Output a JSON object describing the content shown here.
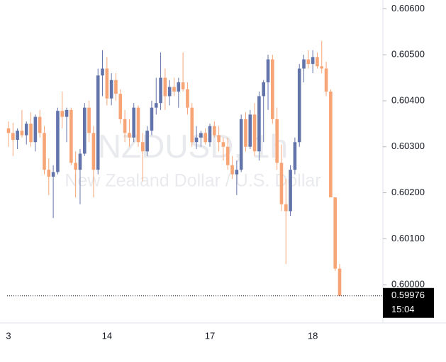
{
  "chart_data": {
    "type": "candlestick",
    "watermark": "NZDUSD, 1h",
    "watermark_subtitle": "New Zealand Dollar / U.S. Dollar",
    "up_color": "#6274aa",
    "down_color": "#f7a576",
    "categories": [
      "3",
      null,
      null,
      null,
      null,
      null,
      null,
      null,
      null,
      null,
      null,
      null,
      null,
      null,
      null,
      null,
      null,
      null,
      null,
      null,
      null,
      null,
      "14",
      null,
      null,
      null,
      null,
      null,
      null,
      null,
      null,
      null,
      null,
      null,
      null,
      null,
      null,
      null,
      null,
      null,
      null,
      null,
      null,
      null,
      null,
      "17",
      null,
      null,
      null,
      null,
      null,
      null,
      null,
      null,
      null,
      null,
      null,
      null,
      null,
      null,
      null,
      null,
      null,
      null,
      null,
      null,
      null,
      null,
      "18",
      null,
      null,
      null,
      null,
      null,
      null
    ],
    "open": [
      0.6034,
      0.6033,
      0.60315,
      0.60335,
      0.60325,
      0.6035,
      0.6031,
      0.60365,
      0.6033,
      0.6025,
      0.60235,
      0.60245,
      0.60378,
      0.60365,
      0.6038,
      0.60265,
      0.6025,
      0.60285,
      0.60385,
      0.6033,
      0.6025,
      0.60455,
      0.6047,
      0.60405,
      0.60445,
      0.60415,
      0.6036,
      0.6033,
      0.6032,
      0.60385,
      0.6031,
      0.6029,
      0.60335,
      0.60385,
      0.60395,
      0.6045,
      0.6041,
      0.6043,
      0.6042,
      0.6044,
      0.60425,
      0.60385,
      0.6031,
      0.6032,
      0.6033,
      0.6031,
      0.60345,
      0.60325,
      0.6031,
      0.603,
      0.6026,
      0.6024,
      0.6025,
      0.6036,
      0.603,
      0.6037,
      0.6029,
      0.6041,
      0.6044,
      0.6049,
      0.6036,
      0.60265,
      0.60175,
      0.6016,
      0.6025,
      0.6031,
      0.6047,
      0.6049,
      0.6048,
      0.60495,
      0.60475,
      0.6047,
      0.6042,
      0.6019,
      0.60035
    ],
    "high": [
      0.60355,
      0.60352,
      0.6034,
      0.6038,
      0.60355,
      0.60375,
      0.6037,
      0.6038,
      0.60345,
      0.60275,
      0.6026,
      0.60385,
      0.6042,
      0.60385,
      0.60385,
      0.6029,
      0.60295,
      0.60395,
      0.604,
      0.60345,
      0.6047,
      0.6051,
      0.60495,
      0.6046,
      0.6046,
      0.60425,
      0.6038,
      0.6036,
      0.60395,
      0.6039,
      0.6033,
      0.60345,
      0.604,
      0.6045,
      0.60505,
      0.6047,
      0.60445,
      0.6045,
      0.6045,
      0.60505,
      0.6044,
      0.60395,
      0.60345,
      0.60335,
      0.6034,
      0.6035,
      0.60355,
      0.60345,
      0.6032,
      0.6032,
      0.6028,
      0.6027,
      0.6037,
      0.60375,
      0.6038,
      0.60395,
      0.6042,
      0.60445,
      0.605,
      0.605,
      0.60385,
      0.60305,
      0.6023,
      0.6026,
      0.6032,
      0.6048,
      0.605,
      0.6051,
      0.6051,
      0.60505,
      0.6053,
      0.60485,
      0.60425,
      0.6019,
      0.60045
    ],
    "low": [
      0.603,
      0.6028,
      0.60295,
      0.6032,
      0.60305,
      0.603,
      0.6029,
      0.6032,
      0.6024,
      0.60195,
      0.60145,
      0.6024,
      0.6034,
      0.6031,
      0.6026,
      0.6019,
      0.60175,
      0.6028,
      0.6031,
      0.6019,
      0.6024,
      0.6041,
      0.6039,
      0.6039,
      0.604,
      0.6035,
      0.6031,
      0.603,
      0.6031,
      0.603,
      0.60225,
      0.6028,
      0.60325,
      0.6037,
      0.6038,
      0.6038,
      0.6039,
      0.6041,
      0.60385,
      0.6042,
      0.6037,
      0.603,
      0.60295,
      0.603,
      0.60305,
      0.603,
      0.6032,
      0.6029,
      0.6027,
      0.6025,
      0.6023,
      0.60195,
      0.60245,
      0.6029,
      0.60295,
      0.6028,
      0.6027,
      0.6031,
      0.6038,
      0.6035,
      0.6025,
      0.6016,
      0.60045,
      0.6015,
      0.6024,
      0.603,
      0.6044,
      0.6047,
      0.6046,
      0.6047,
      0.6046,
      0.6041,
      0.6019,
      0.6003,
      0.59976
    ],
    "close": [
      0.6033,
      0.60315,
      0.60335,
      0.60325,
      0.6035,
      0.6031,
      0.60365,
      0.6033,
      0.6025,
      0.60235,
      0.60245,
      0.60378,
      0.60365,
      0.6038,
      0.60265,
      0.6025,
      0.60285,
      0.60385,
      0.6033,
      0.6025,
      0.60455,
      0.6047,
      0.60405,
      0.60445,
      0.60415,
      0.6036,
      0.6033,
      0.6032,
      0.60385,
      0.6031,
      0.6029,
      0.60335,
      0.60385,
      0.60395,
      0.6045,
      0.6041,
      0.6043,
      0.6042,
      0.6044,
      0.60425,
      0.60385,
      0.6031,
      0.6032,
      0.6033,
      0.6031,
      0.60345,
      0.60325,
      0.6031,
      0.603,
      0.6026,
      0.6024,
      0.6025,
      0.6036,
      0.603,
      0.6037,
      0.6029,
      0.6041,
      0.6044,
      0.6049,
      0.6036,
      0.60265,
      0.60175,
      0.6016,
      0.6025,
      0.6031,
      0.6047,
      0.6049,
      0.6048,
      0.60495,
      0.60475,
      0.6047,
      0.6042,
      0.6019,
      0.60035,
      0.59976
    ],
    "ylim": [
      0.59917,
      0.60619
    ],
    "yticks": [
      {
        "value": 0.6,
        "label": "0.60000"
      },
      {
        "value": 0.601,
        "label": "0.60100"
      },
      {
        "value": 0.602,
        "label": "0.60200"
      },
      {
        "value": 0.603,
        "label": "0.60300"
      },
      {
        "value": 0.604,
        "label": "0.60400"
      },
      {
        "value": 0.605,
        "label": "0.60500"
      },
      {
        "value": 0.606,
        "label": "0.60600"
      }
    ],
    "last_price": 0.59976,
    "countdown": "15:04"
  }
}
